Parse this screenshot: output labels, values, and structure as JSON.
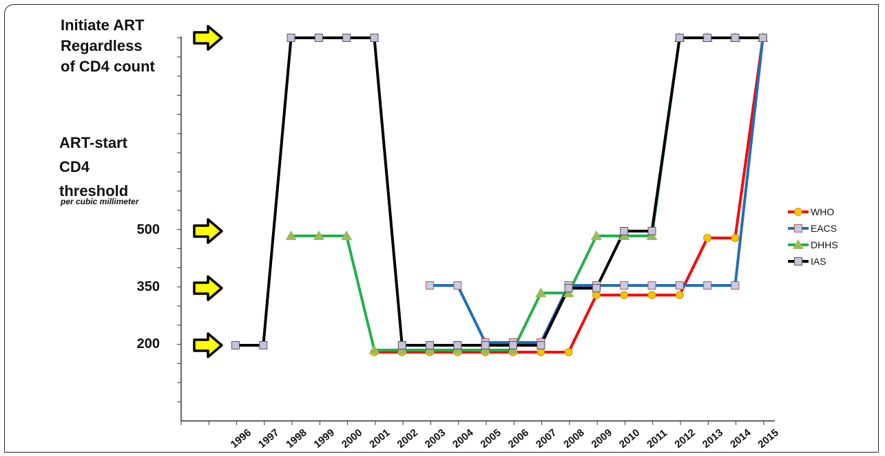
{
  "labels": {
    "top_label": [
      "Initiate ART",
      "Regardless",
      "of CD4 count"
    ],
    "y_title": [
      "ART-start",
      "CD4",
      "threshold"
    ],
    "y_subtitle": "per cubic millimeter"
  },
  "chart_data": {
    "type": "line",
    "categories": [
      "1996",
      "1997",
      "1998",
      "1999",
      "2000",
      "2001",
      "2002",
      "2003",
      "2004",
      "2005",
      "2006",
      "2007",
      "2008",
      "2009",
      "2010",
      "2011",
      "2012",
      "2013",
      "2014",
      "2015"
    ],
    "y_ticks": [
      200,
      350,
      500
    ],
    "top_level_label": "Initiate ART Regardless of CD4 count",
    "arrows_at": [
      200,
      350,
      500,
      "all"
    ],
    "series": [
      {
        "name": "WHO",
        "color": "#ff0000",
        "marker": "circle",
        "marker_color": "#f5c400",
        "values": [
          null,
          null,
          null,
          null,
          null,
          200,
          200,
          200,
          200,
          200,
          200,
          200,
          200,
          350,
          350,
          350,
          350,
          500,
          500,
          "all"
        ]
      },
      {
        "name": "EACS",
        "color": "#1f6fb8",
        "marker": "square",
        "marker_color": "#c8cbe8",
        "values": [
          null,
          null,
          null,
          null,
          null,
          null,
          null,
          350,
          350,
          200,
          200,
          200,
          350,
          350,
          350,
          350,
          350,
          350,
          350,
          "all"
        ]
      },
      {
        "name": "DHHS",
        "color": "#22b14c",
        "marker": "triangle",
        "marker_color": "#9bbb59",
        "values": [
          null,
          null,
          500,
          500,
          500,
          200,
          200,
          200,
          200,
          200,
          200,
          350,
          350,
          500,
          500,
          500,
          "all",
          "all",
          "all",
          "all"
        ]
      },
      {
        "name": "IAS",
        "color": "#000000",
        "marker": "square",
        "marker_color": "#c8c0dc",
        "values": [
          200,
          200,
          "all",
          "all",
          "all",
          "all",
          200,
          200,
          200,
          200,
          200,
          200,
          350,
          350,
          500,
          500,
          "all",
          "all",
          "all",
          "all"
        ]
      }
    ]
  }
}
